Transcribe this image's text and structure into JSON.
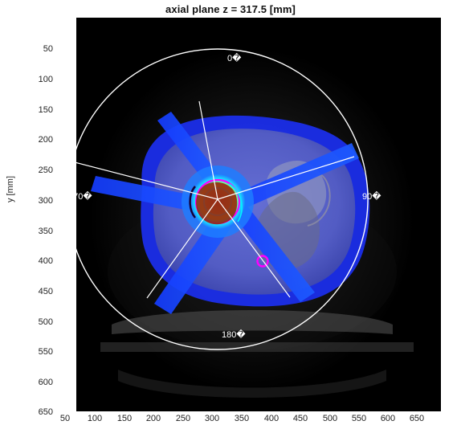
{
  "plot": {
    "title": "axial plane z = 317.5 [mm]",
    "ylabel": "y [mm]",
    "x_ticks": [
      "50",
      "100",
      "150",
      "200",
      "250",
      "300",
      "350",
      "400",
      "450",
      "500",
      "550",
      "600",
      "650"
    ],
    "y_ticks": [
      "50",
      "100",
      "150",
      "200",
      "250",
      "300",
      "350",
      "400",
      "450",
      "500",
      "550",
      "600",
      "650"
    ],
    "angle_labels": {
      "top": "0�",
      "right": "90�",
      "bottom": "180�",
      "left": "270�"
    }
  },
  "colors": {
    "background": "#000000",
    "ring": "#ffffff",
    "dose_blue": "#1f3dff",
    "dose_cyan": "#19f7ff",
    "dose_yellow": "#fff200",
    "dose_red": "#ff2a00",
    "magenta": "#ff00ff",
    "tissue_gray": "#8c8ca0"
  }
}
